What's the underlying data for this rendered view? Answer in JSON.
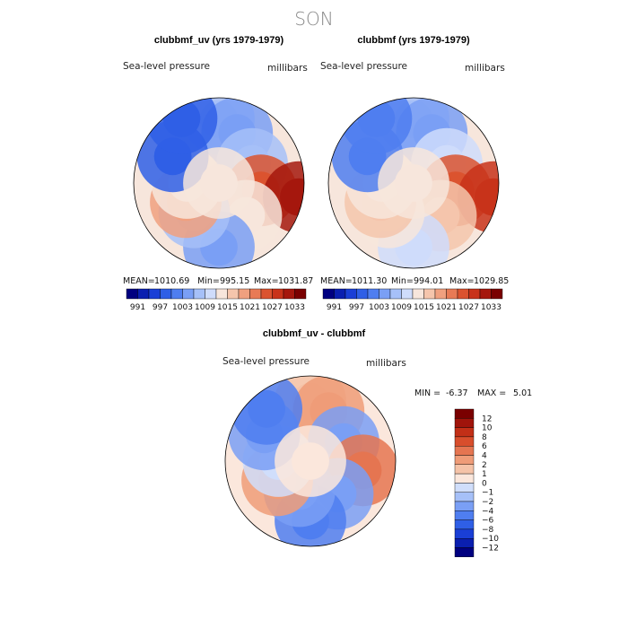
{
  "figure_title": "SON",
  "chart_data": [
    {
      "type": "heatmap",
      "projection": "polar-stereographic-north",
      "title": "clubbmf_uv (yrs 1979-1979)",
      "variable": "Sea-level pressure",
      "units": "millibars",
      "stats": {
        "mean_label": "MEAN=",
        "mean": "1010.69",
        "min_label": "Min=",
        "min": "995.15",
        "max_label": "Max=",
        "max": "1031.87"
      },
      "field": [
        {
          "lon": 0,
          "lat": 60,
          "value": 1007
        },
        {
          "lon": 20,
          "lat": 65,
          "value": 1004
        },
        {
          "lon": 60,
          "lat": 72,
          "value": 1008
        },
        {
          "lon": 100,
          "lat": 70,
          "value": 1024
        },
        {
          "lon": 100,
          "lat": 52,
          "value": 1030
        },
        {
          "lon": 140,
          "lat": 70,
          "value": 1012
        },
        {
          "lon": 180,
          "lat": 60,
          "value": 1004
        },
        {
          "lon": 220,
          "lat": 72,
          "value": 1008
        },
        {
          "lon": 240,
          "lat": 72,
          "value": 1019
        },
        {
          "lon": 270,
          "lat": 75,
          "value": 1014
        },
        {
          "lon": 300,
          "lat": 65,
          "value": 998
        },
        {
          "lon": 330,
          "lat": 55,
          "value": 997
        },
        {
          "lon": 0,
          "lat": 90,
          "value": 1012
        }
      ],
      "colorbar": {
        "orientation": "horizontal",
        "levels": [
          991,
          994,
          997,
          1000,
          1003,
          1006,
          1009,
          1012,
          1015,
          1018,
          1021,
          1024,
          1027,
          1030,
          1033
        ],
        "tick_labels": [
          "991",
          "997",
          "1003",
          "1009",
          "1015",
          "1021",
          "1027",
          "1033"
        ]
      }
    },
    {
      "type": "heatmap",
      "projection": "polar-stereographic-north",
      "title": "clubbmf (yrs 1979-1979)",
      "variable": "Sea-level pressure",
      "units": "millibars",
      "stats": {
        "mean_label": "MEAN=",
        "mean": "1011.30",
        "min_label": "Min=",
        "min": "994.01",
        "max_label": "Max=",
        "max": "1029.85"
      },
      "field": [
        {
          "lon": 0,
          "lat": 60,
          "value": 1007
        },
        {
          "lon": 20,
          "lat": 65,
          "value": 1005
        },
        {
          "lon": 60,
          "lat": 72,
          "value": 1011
        },
        {
          "lon": 100,
          "lat": 70,
          "value": 1024
        },
        {
          "lon": 100,
          "lat": 52,
          "value": 1029
        },
        {
          "lon": 140,
          "lat": 70,
          "value": 1016
        },
        {
          "lon": 180,
          "lat": 60,
          "value": 1009
        },
        {
          "lon": 220,
          "lat": 72,
          "value": 1012
        },
        {
          "lon": 240,
          "lat": 72,
          "value": 1017
        },
        {
          "lon": 270,
          "lat": 75,
          "value": 1014
        },
        {
          "lon": 300,
          "lat": 65,
          "value": 1002
        },
        {
          "lon": 330,
          "lat": 55,
          "value": 1002
        },
        {
          "lon": 0,
          "lat": 90,
          "value": 1012
        }
      ],
      "colorbar": {
        "orientation": "horizontal",
        "levels": [
          991,
          994,
          997,
          1000,
          1003,
          1006,
          1009,
          1012,
          1015,
          1018,
          1021,
          1024,
          1027,
          1030,
          1033
        ],
        "tick_labels": [
          "991",
          "997",
          "1003",
          "1009",
          "1015",
          "1021",
          "1027",
          "1033"
        ]
      }
    },
    {
      "type": "heatmap",
      "projection": "polar-stereographic-north",
      "title": "clubbmf_uv - clubbmf",
      "variable": "Sea-level pressure",
      "units": "millibars",
      "stats": {
        "min_label": "MIN =",
        "min": "-6.37",
        "max_label": "MAX =",
        "max": "5.01"
      },
      "field": [
        {
          "lon": 0,
          "lat": 62,
          "value": 1
        },
        {
          "lon": 20,
          "lat": 65,
          "value": 2
        },
        {
          "lon": 60,
          "lat": 72,
          "value": -3
        },
        {
          "lon": 100,
          "lat": 65,
          "value": 4
        },
        {
          "lon": 140,
          "lat": 70,
          "value": -4
        },
        {
          "lon": 180,
          "lat": 62,
          "value": -5
        },
        {
          "lon": 200,
          "lat": 75,
          "value": -3
        },
        {
          "lon": 240,
          "lat": 72,
          "value": 2
        },
        {
          "lon": 270,
          "lat": 75,
          "value": -1
        },
        {
          "lon": 300,
          "lat": 65,
          "value": -4
        },
        {
          "lon": 320,
          "lat": 58,
          "value": -6
        },
        {
          "lon": 0,
          "lat": 90,
          "value": 0
        }
      ],
      "colorbar": {
        "orientation": "vertical",
        "levels": [
          -12,
          -10,
          -8,
          -6,
          -4,
          -2,
          -1,
          0,
          1,
          2,
          4,
          6,
          8,
          10,
          12
        ],
        "tick_labels": [
          "12",
          "10",
          "8",
          "6",
          "4",
          "2",
          "1",
          "0",
          "−1",
          "−2",
          "−4",
          "−6",
          "−8",
          "−10",
          "−12"
        ]
      }
    }
  ],
  "colors": {
    "sequential16": [
      "#000080",
      "#0a1fb0",
      "#1a3fd6",
      "#2f5fe6",
      "#4f7ef0",
      "#7a9ff5",
      "#a6c0f8",
      "#cfdcfb",
      "#f7e6dc",
      "#f5c5ac",
      "#f0a07f",
      "#e87a55",
      "#db532f",
      "#c8331a",
      "#a5170d",
      "#7a0000"
    ],
    "diverging16": [
      "#000080",
      "#0a1fb0",
      "#1a3fd6",
      "#2f5fe6",
      "#4f7ef0",
      "#7a9ff5",
      "#a6c0f8",
      "#d0defb",
      "#fbe7dc",
      "#f5c3a8",
      "#ef9c78",
      "#e57551",
      "#d84e2c",
      "#c22f17",
      "#a0140b",
      "#7a0000"
    ]
  }
}
